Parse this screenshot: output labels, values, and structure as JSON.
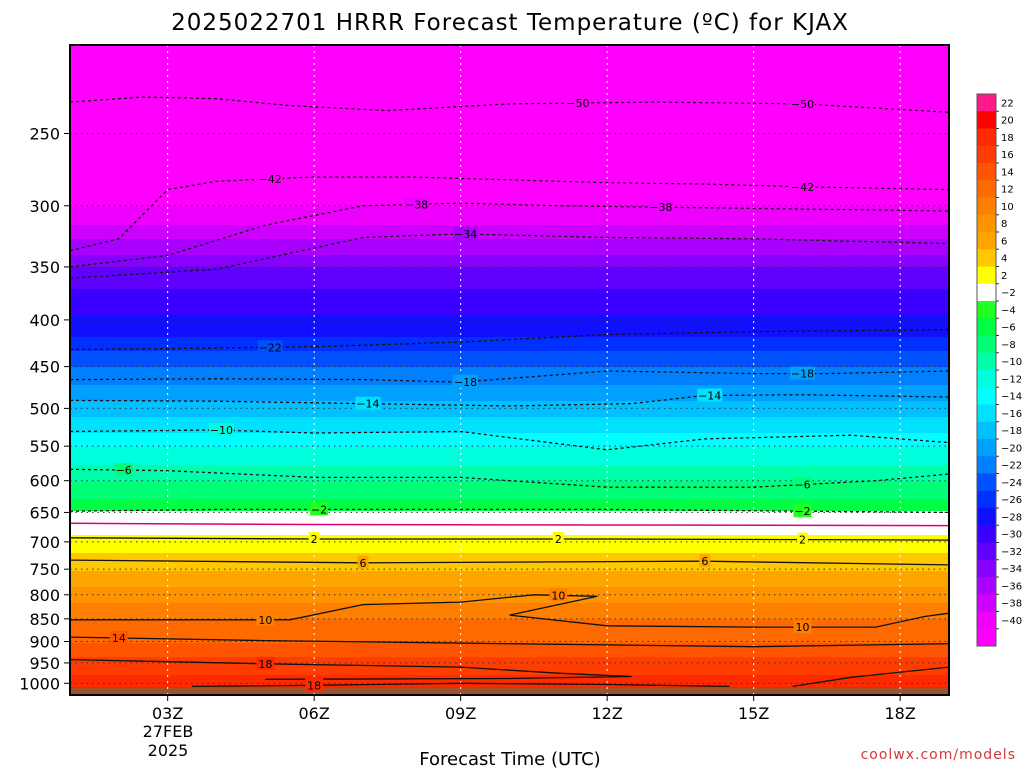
{
  "chart_data": {
    "type": "heatmap",
    "title": "2025022701 HRRR Forecast Temperature (ºC) for KJAX",
    "xlabel": "Forecast Time (UTC)",
    "ylabel": "",
    "credit": "coolwx.com/models",
    "x_ticks": [
      "03Z",
      "06Z",
      "09Z",
      "12Z",
      "15Z",
      "18Z"
    ],
    "x_date_lines": [
      "27FEB",
      "2025"
    ],
    "x_range_hours_utc": [
      1,
      19
    ],
    "y_ticks": [
      250,
      300,
      350,
      400,
      450,
      500,
      550,
      600,
      650,
      700,
      750,
      800,
      850,
      900,
      950,
      1000
    ],
    "ylim": [
      1030,
      200
    ],
    "y_scale": "log-pressure",
    "grid": true,
    "colorbar": {
      "labels": [
        "22",
        "20",
        "18",
        "16",
        "14",
        "12",
        "10",
        "8",
        "6",
        "4",
        "2",
        "-2",
        "-4",
        "-6",
        "-8",
        "-10",
        "-12",
        "-14",
        "-16",
        "-18",
        "-20",
        "-22",
        "-24",
        "-26",
        "-28",
        "-30",
        "-32",
        "-34",
        "-36",
        "-38",
        "-40"
      ],
      "colors": [
        "#ff1a8c",
        "#ff0000",
        "#ff2a00",
        "#ff3d00",
        "#ff5500",
        "#ff6a00",
        "#ff7f00",
        "#ff9300",
        "#ffa500",
        "#ffc800",
        "#ffff00",
        "#ffffff",
        "#22ff22",
        "#00ff44",
        "#00ff77",
        "#00ffaa",
        "#00ffdd",
        "#00ffff",
        "#00e0ff",
        "#00c0ff",
        "#00a0ff",
        "#0080ff",
        "#0050ff",
        "#0030ff",
        "#1010ff",
        "#3a00ff",
        "#6000ff",
        "#8800ff",
        "#aa00ff",
        "#cc00ff",
        "#ee00ff",
        "#ff00ff"
      ]
    },
    "temperature_profile": [
      {
        "p": 200,
        "t": -54
      },
      {
        "p": 230,
        "t": -50
      },
      {
        "p": 260,
        "t": -45
      },
      {
        "p": 280,
        "t": -42
      },
      {
        "p": 300,
        "t": -38
      },
      {
        "p": 320,
        "t": -35
      },
      {
        "p": 350,
        "t": -30
      },
      {
        "p": 380,
        "t": -27
      },
      {
        "p": 410,
        "t": -25
      },
      {
        "p": 440,
        "t": -21
      },
      {
        "p": 470,
        "t": -18
      },
      {
        "p": 510,
        "t": -14
      },
      {
        "p": 550,
        "t": -10
      },
      {
        "p": 600,
        "t": -6
      },
      {
        "p": 640,
        "t": -3
      },
      {
        "p": 670,
        "t": 1
      },
      {
        "p": 700,
        "t": 3
      },
      {
        "p": 750,
        "t": 6
      },
      {
        "p": 800,
        "t": 9
      },
      {
        "p": 850,
        "t": 12
      },
      {
        "p": 900,
        "t": 14
      },
      {
        "p": 950,
        "t": 17
      },
      {
        "p": 1000,
        "t": 19
      },
      {
        "p": 1015,
        "t": 21
      }
    ],
    "contours": [
      {
        "value": -50,
        "style": "dashed",
        "label": "50",
        "label_positions": [
          {
            "x": 11.4
          },
          {
            "x": 16.0
          }
        ],
        "points": [
          {
            "x": 1.0,
            "p": 231
          },
          {
            "x": 2.5,
            "p": 228
          },
          {
            "x": 4.0,
            "p": 229
          },
          {
            "x": 5.5,
            "p": 233
          },
          {
            "x": 7.5,
            "p": 236
          },
          {
            "x": 10.0,
            "p": 232
          },
          {
            "x": 13.0,
            "p": 231
          },
          {
            "x": 16.0,
            "p": 232
          },
          {
            "x": 19.0,
            "p": 237
          }
        ]
      },
      {
        "value": -42,
        "style": "dashed",
        "label": "42",
        "label_positions": [
          {
            "x": 5.1
          },
          {
            "x": 16.0
          }
        ],
        "points": [
          {
            "x": 1.0,
            "p": 336
          },
          {
            "x": 2.0,
            "p": 326
          },
          {
            "x": 3.0,
            "p": 288
          },
          {
            "x": 4.0,
            "p": 282
          },
          {
            "x": 6.0,
            "p": 279
          },
          {
            "x": 8.0,
            "p": 279
          },
          {
            "x": 10.0,
            "p": 281
          },
          {
            "x": 12.0,
            "p": 283
          },
          {
            "x": 14.0,
            "p": 284
          },
          {
            "x": 16.0,
            "p": 286
          },
          {
            "x": 19.0,
            "p": 288
          }
        ]
      },
      {
        "value": -38,
        "style": "dashed",
        "label": "38",
        "label_positions": [
          {
            "x": 8.1
          },
          {
            "x": 13.1
          }
        ],
        "points": [
          {
            "x": 1.0,
            "p": 350
          },
          {
            "x": 3.0,
            "p": 340
          },
          {
            "x": 5.0,
            "p": 315
          },
          {
            "x": 7.0,
            "p": 300
          },
          {
            "x": 9.0,
            "p": 298
          },
          {
            "x": 11.0,
            "p": 300
          },
          {
            "x": 13.0,
            "p": 301
          },
          {
            "x": 15.0,
            "p": 302
          },
          {
            "x": 17.0,
            "p": 303
          },
          {
            "x": 19.0,
            "p": 304
          }
        ]
      },
      {
        "value": -34,
        "style": "dashed",
        "label": "34",
        "label_positions": [
          {
            "x": 9.1
          }
        ],
        "points": [
          {
            "x": 1.0,
            "p": 360
          },
          {
            "x": 4.0,
            "p": 352
          },
          {
            "x": 7.0,
            "p": 325
          },
          {
            "x": 9.0,
            "p": 322
          },
          {
            "x": 12.0,
            "p": 325
          },
          {
            "x": 15.0,
            "p": 326
          },
          {
            "x": 19.0,
            "p": 330
          }
        ]
      },
      {
        "value": -22,
        "style": "dashed",
        "label": "22",
        "label_positions": [
          {
            "x": 5.1
          }
        ],
        "points": [
          {
            "x": 1.0,
            "p": 431
          },
          {
            "x": 3.0,
            "p": 430
          },
          {
            "x": 6.0,
            "p": 428
          },
          {
            "x": 9.0,
            "p": 423
          },
          {
            "x": 12.0,
            "p": 415
          },
          {
            "x": 15.0,
            "p": 412
          },
          {
            "x": 19.0,
            "p": 410
          }
        ]
      },
      {
        "value": -18,
        "style": "dashed",
        "label": "18",
        "label_positions": [
          {
            "x": 9.1
          },
          {
            "x": 16.0
          }
        ],
        "points": [
          {
            "x": 1.0,
            "p": 465
          },
          {
            "x": 4.0,
            "p": 464
          },
          {
            "x": 7.0,
            "p": 465
          },
          {
            "x": 9.0,
            "p": 468
          },
          {
            "x": 12.0,
            "p": 455
          },
          {
            "x": 15.0,
            "p": 458
          },
          {
            "x": 16.5,
            "p": 458
          },
          {
            "x": 19.0,
            "p": 455
          }
        ]
      },
      {
        "value": -14,
        "style": "dashed",
        "label": "14",
        "label_positions": [
          {
            "x": 7.1
          },
          {
            "x": 14.1
          }
        ],
        "points": [
          {
            "x": 1.0,
            "p": 490
          },
          {
            "x": 4.0,
            "p": 491
          },
          {
            "x": 7.0,
            "p": 494
          },
          {
            "x": 10.0,
            "p": 497
          },
          {
            "x": 12.5,
            "p": 494
          },
          {
            "x": 14.0,
            "p": 484
          },
          {
            "x": 16.0,
            "p": 483
          },
          {
            "x": 19.0,
            "p": 486
          }
        ]
      },
      {
        "value": -10,
        "style": "dashed",
        "label": "10",
        "label_positions": [
          {
            "x": 4.1
          }
        ],
        "points": [
          {
            "x": 1.0,
            "p": 530
          },
          {
            "x": 4.0,
            "p": 528
          },
          {
            "x": 6.0,
            "p": 532
          },
          {
            "x": 9.0,
            "p": 530
          },
          {
            "x": 12.0,
            "p": 555
          },
          {
            "x": 14.0,
            "p": 540
          },
          {
            "x": 17.0,
            "p": 535
          },
          {
            "x": 19.0,
            "p": 545
          }
        ]
      },
      {
        "value": -6,
        "style": "dashed",
        "label": "6",
        "label_positions": [
          {
            "x": 2.1
          },
          {
            "x": 16.0
          }
        ],
        "points": [
          {
            "x": 1.0,
            "p": 583
          },
          {
            "x": 3.0,
            "p": 585
          },
          {
            "x": 6.0,
            "p": 595
          },
          {
            "x": 9.0,
            "p": 595
          },
          {
            "x": 12.0,
            "p": 610
          },
          {
            "x": 15.0,
            "p": 610
          },
          {
            "x": 17.5,
            "p": 600
          },
          {
            "x": 19.0,
            "p": 590
          }
        ]
      },
      {
        "value": -2,
        "style": "dashed",
        "label": "2",
        "label_positions": [
          {
            "x": 6.1
          },
          {
            "x": 16.0
          }
        ],
        "points": [
          {
            "x": 1.0,
            "p": 648
          },
          {
            "x": 4.0,
            "p": 645
          },
          {
            "x": 8.0,
            "p": 645
          },
          {
            "x": 12.0,
            "p": 645
          },
          {
            "x": 16.0,
            "p": 648
          },
          {
            "x": 19.0,
            "p": 650
          }
        ]
      },
      {
        "value": 0,
        "style": "magenta",
        "label": "",
        "label_positions": [],
        "points": [
          {
            "x": 1.0,
            "p": 668
          },
          {
            "x": 6.0,
            "p": 670
          },
          {
            "x": 12.0,
            "p": 671
          },
          {
            "x": 19.0,
            "p": 672
          }
        ]
      },
      {
        "value": 2,
        "style": "solid",
        "label": "2",
        "label_positions": [
          {
            "x": 6.0
          },
          {
            "x": 11.0
          },
          {
            "x": 16.0
          }
        ],
        "points": [
          {
            "x": 1.0,
            "p": 693
          },
          {
            "x": 6.0,
            "p": 695
          },
          {
            "x": 12.0,
            "p": 695
          },
          {
            "x": 19.0,
            "p": 697
          }
        ]
      },
      {
        "value": 6,
        "style": "solid",
        "label": "6",
        "label_positions": [
          {
            "x": 7.0
          },
          {
            "x": 14.0
          }
        ],
        "points": [
          {
            "x": 1.0,
            "p": 733
          },
          {
            "x": 7.0,
            "p": 738
          },
          {
            "x": 14.0,
            "p": 735
          },
          {
            "x": 19.0,
            "p": 742
          }
        ]
      },
      {
        "value": 10,
        "style": "solid",
        "label": "10",
        "label_positions": [
          {
            "x": 5.0
          },
          {
            "x": 11.0
          },
          {
            "x": 16.0
          }
        ],
        "points": [
          {
            "x": 1.0,
            "p": 852
          },
          {
            "x": 5.5,
            "p": 852
          },
          {
            "x": 7.0,
            "p": 820
          },
          {
            "x": 9.0,
            "p": 815
          },
          {
            "x": 10.5,
            "p": 800
          },
          {
            "x": 11.8,
            "p": 803
          },
          {
            "x": 10.0,
            "p": 842
          },
          {
            "x": 12.0,
            "p": 865
          },
          {
            "x": 15.0,
            "p": 868
          },
          {
            "x": 17.5,
            "p": 868
          },
          {
            "x": 18.5,
            "p": 845
          },
          {
            "x": 19.0,
            "p": 838
          }
        ]
      },
      {
        "value": 14,
        "style": "solid",
        "label": "14",
        "label_positions": [
          {
            "x": 2.0
          }
        ],
        "points": [
          {
            "x": 1.0,
            "p": 890
          },
          {
            "x": 5.0,
            "p": 898
          },
          {
            "x": 10.0,
            "p": 905
          },
          {
            "x": 15.0,
            "p": 912
          },
          {
            "x": 19.0,
            "p": 905
          }
        ]
      },
      {
        "value": 18,
        "style": "solid",
        "label": "18",
        "label_positions": [
          {
            "x": 5.0
          }
        ],
        "points": [
          {
            "x": 1.0,
            "p": 942
          },
          {
            "x": 5.0,
            "p": 952
          },
          {
            "x": 9.0,
            "p": 960
          },
          {
            "x": 11.0,
            "p": 975
          },
          {
            "x": 12.5,
            "p": 983
          },
          {
            "x": 10.0,
            "p": 988
          },
          {
            "x": 5.0,
            "p": 990
          }
        ]
      },
      {
        "value": 18,
        "style": "solid",
        "label": "18",
        "label_positions": [
          {
            "x": 6.0
          }
        ],
        "points": [
          {
            "x": 3.5,
            "p": 1008
          },
          {
            "x": 6.0,
            "p": 1005
          },
          {
            "x": 9.0,
            "p": 1000
          },
          {
            "x": 12.0,
            "p": 1003
          },
          {
            "x": 14.5,
            "p": 1008
          }
        ]
      },
      {
        "value": 18,
        "style": "solid",
        "label": "",
        "label_positions": [],
        "points": [
          {
            "x": 15.8,
            "p": 1008
          },
          {
            "x": 17.0,
            "p": 985
          },
          {
            "x": 19.0,
            "p": 960
          }
        ]
      }
    ],
    "ground_color": "#a0522d"
  }
}
